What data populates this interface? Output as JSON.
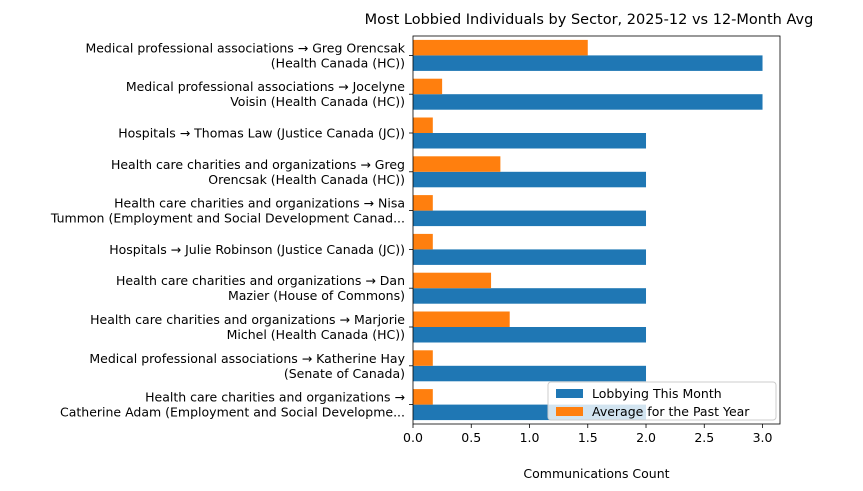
{
  "chart_data": {
    "type": "bar",
    "orientation": "horizontal",
    "title": "Most Lobbied Individuals by Sector, 2025-12 vs 12-Month Avg",
    "xlabel": "Communications Count",
    "ylabel": "",
    "xlim": [
      0,
      3.15
    ],
    "xticks": [
      "0.0",
      "0.5",
      "1.0",
      "1.5",
      "2.0",
      "2.5",
      "3.0"
    ],
    "grid": false,
    "legend_position": "lower right",
    "categories": [
      [
        "Medical professional associations → Greg Orencsak",
        "(Health Canada (HC))"
      ],
      [
        "Medical professional associations → Jocelyne",
        "Voisin (Health Canada (HC))"
      ],
      [
        "Hospitals → Thomas Law (Justice Canada (JC))"
      ],
      [
        "Health care charities and organizations → Greg",
        "Orencsak (Health Canada (HC))"
      ],
      [
        "Health care charities and organizations → Nisa",
        "Tummon (Employment and Social Development Canad..."
      ],
      [
        "Hospitals → Julie Robinson (Justice Canada (JC))"
      ],
      [
        "Health care charities and organizations → Dan",
        "Mazier (House of Commons)"
      ],
      [
        "Health care charities and organizations → Marjorie",
        "Michel (Health Canada (HC))"
      ],
      [
        "Medical professional associations → Katherine Hay",
        "(Senate of Canada)"
      ],
      [
        "Health care charities and organizations →",
        "Catherine Adam (Employment and Social Developme..."
      ]
    ],
    "series": [
      {
        "name": "Lobbying This Month",
        "color": "#1f77b4",
        "values": [
          3,
          3,
          2,
          2,
          2,
          2,
          2,
          2,
          2,
          2
        ]
      },
      {
        "name": "Average for the Past Year",
        "color": "#ff7f0e",
        "values": [
          1.5,
          0.25,
          0.17,
          0.75,
          0.17,
          0.17,
          0.67,
          0.83,
          0.17,
          0.17
        ]
      }
    ]
  }
}
